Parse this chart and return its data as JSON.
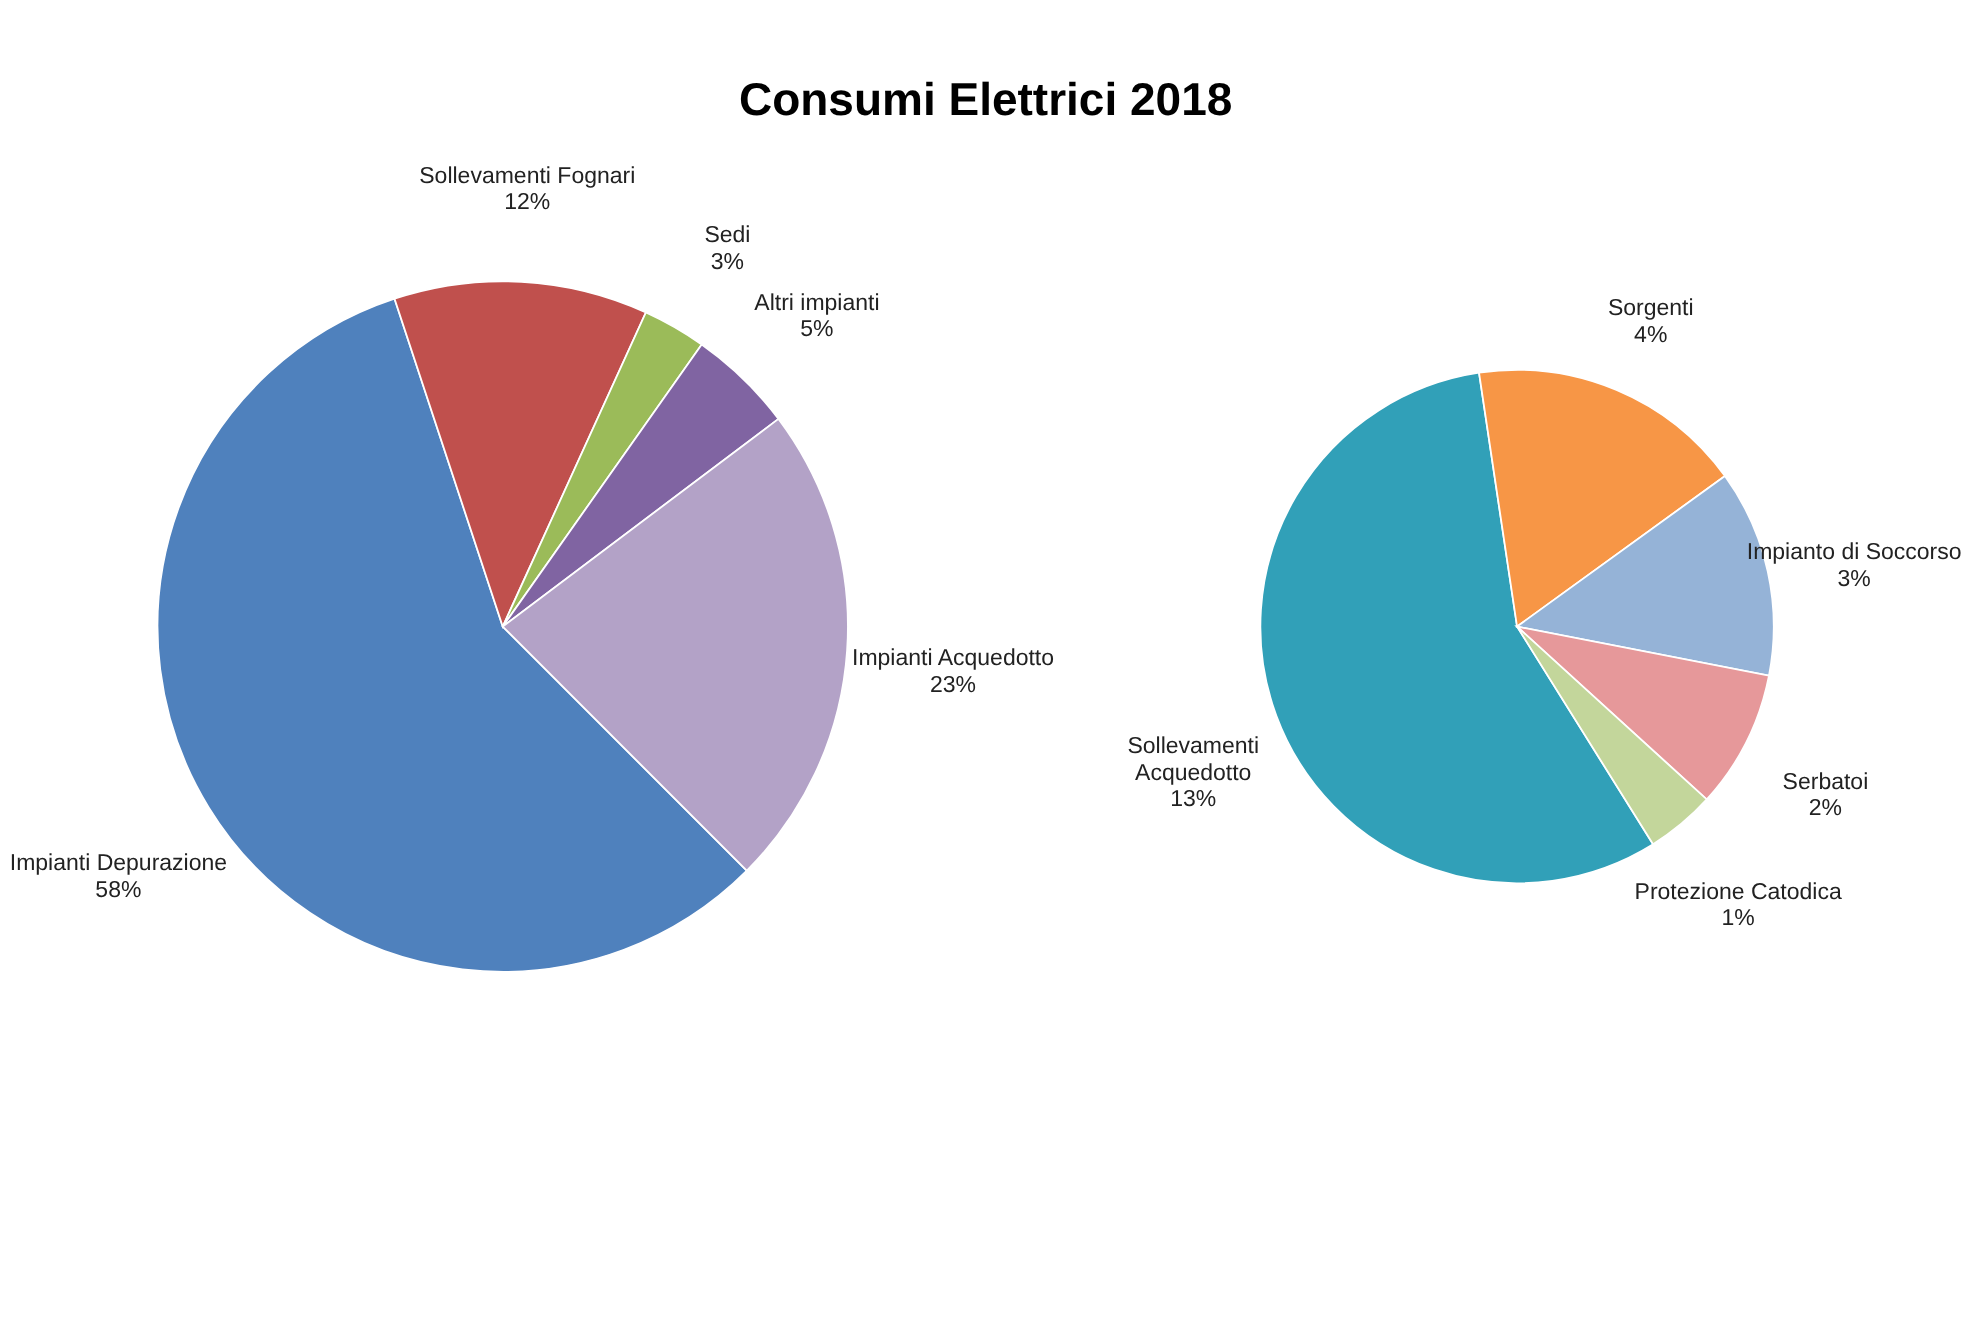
{
  "chart_data": [
    {
      "type": "pie",
      "title": "Consumi Elettrici 2018",
      "categories": [
        "Impianti Depurazione",
        "Sollevamenti Fognari",
        "Sedi",
        "Altri impianti",
        "Impianti Acquedotto"
      ],
      "values": [
        58,
        12,
        3,
        5,
        23
      ],
      "value_labels": [
        "58%",
        "12%",
        "3%",
        "5%",
        "23%"
      ],
      "colors": [
        "#4f81bd",
        "#c0504d",
        "#9bbb59",
        "#8064a2",
        "#b3a2c7"
      ]
    },
    {
      "type": "pie",
      "categories": [
        "Sollevamenti Acquedotto",
        "Sorgenti",
        "Impianto di Soccorso",
        "Serbatoi",
        "Protezione Catodica"
      ],
      "values": [
        13,
        4,
        3,
        2,
        1
      ],
      "value_labels": [
        "13%",
        "4%",
        "3%",
        "2%",
        "1%"
      ],
      "colors": [
        "#31a0b8",
        "#f79646",
        "#95b3d7",
        "#e6989a",
        "#c3d69b"
      ]
    }
  ]
}
